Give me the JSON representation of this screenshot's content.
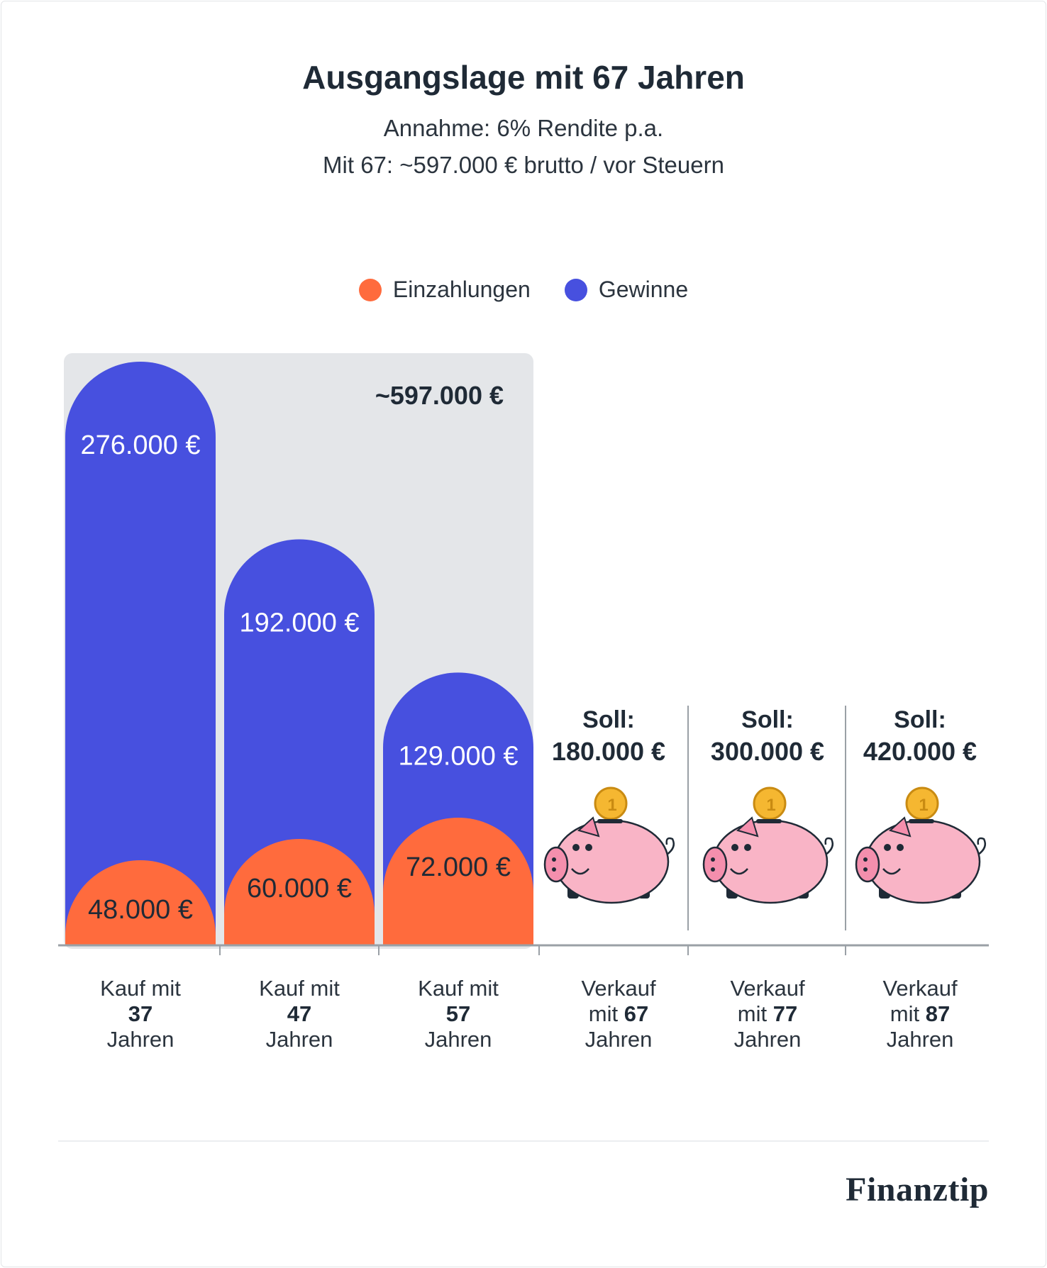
{
  "header": {
    "title": "Ausgangslage mit 67 Jahren",
    "subtitle_1": "Annahme: 6% Rendite p.a.",
    "subtitle_2": "Mit 67: ~597.000 € brutto / vor Steuern"
  },
  "legend": [
    {
      "label": "Einzahlungen",
      "color": "#ff6b3d"
    },
    {
      "label": "Gewinne",
      "color": "#4750df"
    }
  ],
  "colors": {
    "einzahlungen": "#ff6b3d",
    "gewinne": "#4750df",
    "highlight_box": "#e4e6e9",
    "axis": "#9aa0a6",
    "piggy": "#f9b4c6",
    "coin": "#f5b731"
  },
  "chart_data": {
    "type": "bar",
    "categories": [
      "Kauf mit 37 Jahren",
      "Kauf mit 47 Jahren",
      "Kauf mit 57 Jahren"
    ],
    "series": [
      {
        "name": "Einzahlungen",
        "values": [
          48000,
          60000,
          72000
        ],
        "labels": [
          "48.000 €",
          "60.000 €",
          "72.000 €"
        ]
      },
      {
        "name": "Gewinne",
        "values": [
          276000,
          192000,
          129000
        ],
        "labels": [
          "276.000 €",
          "192.000 €",
          "129.000 €"
        ]
      }
    ],
    "total_label": "~597.000 €",
    "total_value": 597000,
    "ylim": [
      0,
      276000
    ],
    "grid": false,
    "legend_position": "top-center",
    "targets": [
      {
        "soll_label": "Soll:",
        "value": 180000,
        "value_label": "180.000 €"
      },
      {
        "soll_label": "Soll:",
        "value": 300000,
        "value_label": "300.000 €"
      },
      {
        "soll_label": "Soll:",
        "value": 420000,
        "value_label": "420.000 €"
      }
    ],
    "x_labels": [
      {
        "line1": "Kauf mit",
        "line2": "37",
        "line3": "Jahren"
      },
      {
        "line1": "Kauf mit",
        "line2": "47",
        "line3": "Jahren"
      },
      {
        "line1": "Kauf mit",
        "line2": "57",
        "line3": "Jahren"
      },
      {
        "line1": "Verkauf",
        "line2a": "mit ",
        "line2b": "67",
        "line3": "Jahren"
      },
      {
        "line1": "Verkauf",
        "line2a": "mit ",
        "line2b": "77",
        "line3": "Jahren"
      },
      {
        "line1": "Verkauf",
        "line2a": "mit ",
        "line2b": "87",
        "line3": "Jahren"
      }
    ]
  },
  "footer": {
    "brand": "Finanztip"
  }
}
